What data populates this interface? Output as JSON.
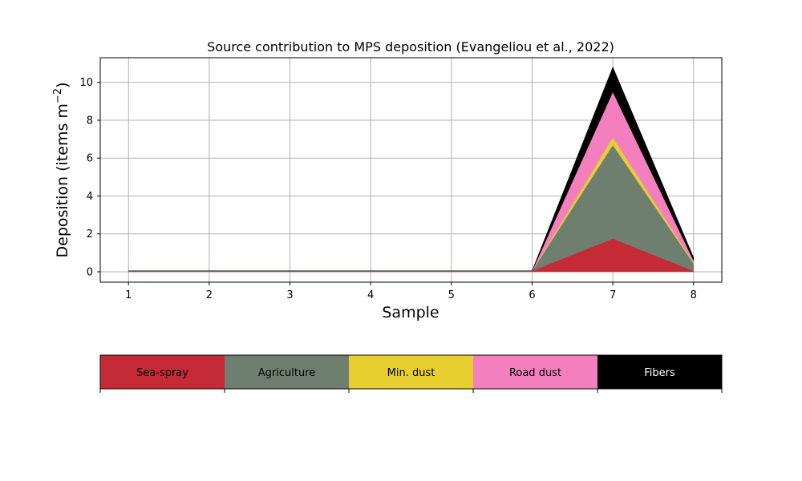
{
  "chart_data": {
    "type": "area",
    "title": "Source contribution to MPS deposition (Evangeliou et al., 2022)",
    "xlabel": "Sample",
    "ylabel": "Deposition (items m",
    "ylabel_sup": "−2",
    "ylabel_suffix": ")",
    "x": [
      1,
      2,
      3,
      4,
      5,
      6,
      7,
      8
    ],
    "xlim": [
      0.65,
      8.35
    ],
    "ylim": [
      -0.55,
      11.3
    ],
    "xticks": [
      1,
      2,
      3,
      4,
      5,
      6,
      7,
      8
    ],
    "yticks": [
      0,
      2,
      4,
      6,
      8,
      10
    ],
    "grid": true,
    "stacked": true,
    "series": [
      {
        "name": "Sea-spray",
        "color": "#c52a37",
        "values": [
          0.05,
          0.05,
          0.05,
          0.05,
          0.05,
          0.05,
          1.75,
          0.05
        ]
      },
      {
        "name": "Agriculture",
        "color": "#6e7f70",
        "values": [
          0,
          0,
          0,
          0,
          0,
          0,
          4.95,
          0.4
        ]
      },
      {
        "name": "Min. dust",
        "color": "#e6cf2e",
        "values": [
          0,
          0,
          0,
          0,
          0,
          0,
          0.4,
          0.05
        ]
      },
      {
        "name": "Road dust",
        "color": "#f47fbf",
        "values": [
          0,
          0,
          0,
          0,
          0,
          0,
          2.4,
          0.1
        ]
      },
      {
        "name": "Fibers",
        "color": "#000000",
        "values": [
          0,
          0,
          0,
          0,
          0,
          0,
          1.3,
          0.15
        ]
      }
    ],
    "legend": {
      "placement": "bottom-colorbar",
      "text_colors": [
        "#000000",
        "#000000",
        "#000000",
        "#000000",
        "#ffffff"
      ]
    }
  }
}
